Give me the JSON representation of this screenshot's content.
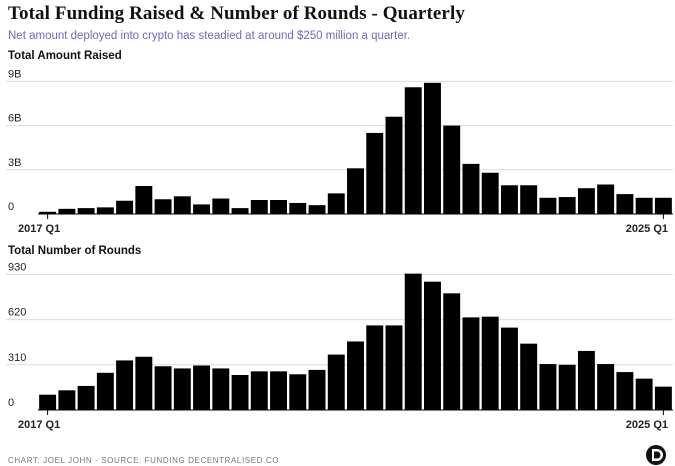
{
  "header": {
    "title": "Total Funding Raised & Number of Rounds - Quarterly",
    "subtitle": "Net amount deployed into crypto has steadied at around $250 million a quarter."
  },
  "footer": {
    "source": "CHART: JOEL JOHN · SOURCE: FUNDING DECENTRALISED.CO"
  },
  "colors": {
    "bar": "#000000",
    "grid": "#dcdcdc",
    "accent": "#7b63b8"
  },
  "chart_data": [
    {
      "type": "bar",
      "title": "Total Amount Raised",
      "x_start_label": "2017 Q1",
      "x_end_label": "2025 Q1",
      "yticks": [
        0,
        3,
        6,
        9
      ],
      "ytick_labels": [
        "0",
        "3B",
        "6B",
        "9B"
      ],
      "ylim": [
        0,
        9.5
      ],
      "unit": "B",
      "values": [
        0.15,
        0.35,
        0.4,
        0.45,
        0.9,
        1.9,
        1.0,
        1.2,
        0.65,
        1.05,
        0.4,
        0.95,
        0.95,
        0.75,
        0.6,
        1.4,
        3.1,
        5.5,
        6.6,
        8.6,
        8.9,
        6.0,
        3.4,
        2.8,
        1.95,
        1.95,
        1.1,
        1.15,
        1.75,
        2.0,
        1.35,
        1.1,
        1.1
      ]
    },
    {
      "type": "bar",
      "title": "Total Number of Rounds",
      "x_start_label": "2017 Q1",
      "x_end_label": "2025 Q1",
      "yticks": [
        0,
        310,
        620,
        930
      ],
      "ytick_labels": [
        "0",
        "310",
        "620",
        "930"
      ],
      "ylim": [
        0,
        960
      ],
      "values": [
        105,
        135,
        165,
        255,
        340,
        365,
        300,
        285,
        305,
        285,
        240,
        265,
        265,
        245,
        275,
        380,
        470,
        580,
        580,
        935,
        880,
        800,
        635,
        640,
        565,
        455,
        315,
        310,
        405,
        315,
        260,
        215,
        160
      ]
    }
  ]
}
